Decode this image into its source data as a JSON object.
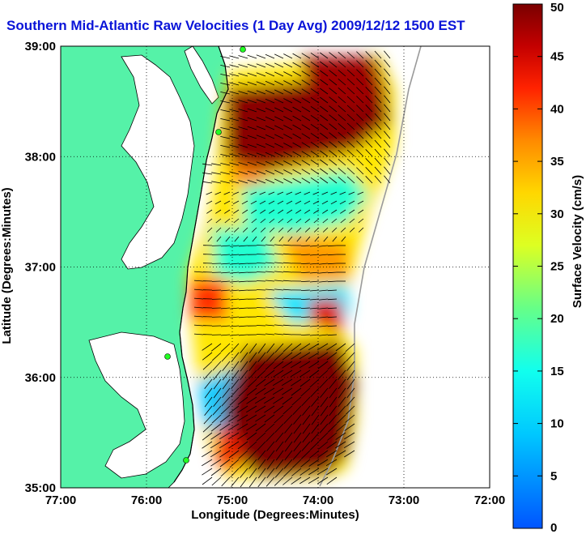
{
  "title": "Southern Mid-Atlantic Raw Velocities (1 Day Avg) 2009/12/12 1500 EST",
  "map": {
    "xlabel": "Longitude (Degrees:Minutes)",
    "ylabel": "Latitude (Degrees:Minutes)",
    "x_ticks": [
      "77:00",
      "76:00",
      "75:00",
      "74:00",
      "73:00",
      "72:00"
    ],
    "y_ticks": [
      "39:00",
      "38:00",
      "37:00",
      "36:00",
      "35:00"
    ],
    "xlim": [
      -77,
      -72
    ],
    "ylim": [
      35,
      39
    ],
    "grid": "dotted",
    "land_color": "#55f2a8",
    "coast_color": "#000000"
  },
  "colorbar": {
    "label": "Surface Velocity (cm/s)",
    "ticks": [
      "50",
      "45",
      "40",
      "35",
      "30",
      "25",
      "20",
      "15",
      "10",
      "5",
      "0"
    ],
    "range": [
      0,
      50
    ],
    "colormap": "jet"
  }
}
